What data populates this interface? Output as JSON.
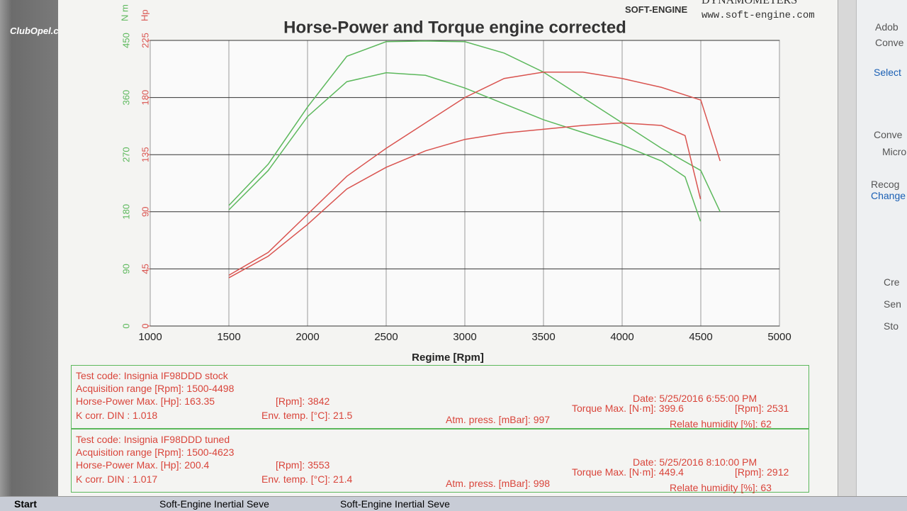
{
  "chart_data": {
    "type": "line",
    "title": "Horse-Power and Torque engine corrected",
    "xlabel": "Regime [Rpm]",
    "ylabel": "N m",
    "y2label": "Hp",
    "xlim": [
      1000,
      5000
    ],
    "xticks": [
      1000,
      1500,
      2000,
      2500,
      3000,
      3500,
      4000,
      4500,
      5000
    ],
    "ylim": [
      0,
      450
    ],
    "yticks": [
      0,
      90,
      180,
      270,
      360,
      450
    ],
    "y2lim": [
      0,
      225
    ],
    "y2ticks": [
      0,
      45,
      90,
      135,
      180,
      225
    ],
    "grid": true,
    "series": [
      {
        "color": "#5cb85c",
        "x": [
          1500,
          1750,
          2000,
          2250,
          2500,
          2750,
          3000,
          3250,
          3500,
          3750,
          4000,
          4250,
          4500,
          4623
        ],
        "values": [
          190,
          255,
          345,
          425,
          448,
          449,
          448,
          430,
          400,
          360,
          320,
          280,
          245,
          180
        ]
      },
      {
        "color": "#5cb85c",
        "x": [
          1500,
          1750,
          2000,
          2250,
          2500,
          2750,
          3000,
          3250,
          3500,
          3750,
          4000,
          4250,
          4400,
          4498
        ],
        "values": [
          183,
          245,
          330,
          385,
          399,
          395,
          375,
          350,
          325,
          305,
          285,
          260,
          235,
          165
        ]
      },
      {
        "color": "#d9534f",
        "axis": "y2",
        "x": [
          1500,
          1750,
          2000,
          2250,
          2500,
          2750,
          3000,
          3250,
          3500,
          3750,
          4000,
          4250,
          4400,
          4498
        ],
        "values": [
          38,
          55,
          80,
          108,
          125,
          138,
          147,
          152,
          155,
          158,
          160,
          158,
          150,
          100
        ]
      },
      {
        "color": "#d9534f",
        "axis": "y2",
        "x": [
          1500,
          1750,
          2000,
          2250,
          2500,
          2750,
          3000,
          3250,
          3500,
          3750,
          4000,
          4250,
          4500,
          4623
        ],
        "values": [
          40,
          58,
          88,
          118,
          140,
          160,
          180,
          195,
          200,
          200,
          195,
          188,
          178,
          130
        ]
      }
    ]
  },
  "header": {
    "watermark": "ClubOpel.com",
    "brand": "SOFT-ENGINE",
    "brand_tail": "DYNAMOMETERS",
    "url": "www.soft-engine.com"
  },
  "panels": [
    {
      "test_code": "Test code: Insignia IF98DDD stock",
      "range": "Acquisition range [Rpm]: 1500-4498",
      "hp_max": "Horse-Power Max. [Hp]: 163.35",
      "hp_rpm": "[Rpm]: 3842",
      "kcorr": "K corr. DIN : 1.018",
      "temp": "Env. temp. [°C]: 21.5",
      "press": "Atm. press. [mBar]: 997",
      "date": "Date: 5/25/2016 6:55:00 PM",
      "tq_max": "Torque Max. [N·m]: 399.6",
      "tq_rpm": "[Rpm]: 2531",
      "humidity": "Relate humidity [%]: 62"
    },
    {
      "test_code": "Test code: Insignia IF98DDD tuned",
      "range": "Acquisition range [Rpm]: 1500-4623",
      "hp_max": "Horse-Power Max. [Hp]: 200.4",
      "hp_rpm": "[Rpm]: 3553",
      "kcorr": "K corr. DIN : 1.017",
      "temp": "Env. temp. [°C]: 21.4",
      "press": "Atm. press. [mBar]: 998",
      "date": "Date: 5/25/2016 8:10:00 PM",
      "tq_max": "Torque Max. [N·m]: 449.4",
      "tq_rpm": "[Rpm]: 2912",
      "humidity": "Relate humidity [%]: 63"
    }
  ],
  "sidebar": [
    "Adob",
    "Conve",
    "Select",
    "Conve",
    "Micro",
    "Recog",
    "Change",
    "Cre",
    "Sen",
    "Sto"
  ],
  "taskbar": {
    "start": "Start",
    "items": [
      "Soft-Engine Inertial Seve",
      "Soft-Engine Inertial Seve"
    ]
  }
}
